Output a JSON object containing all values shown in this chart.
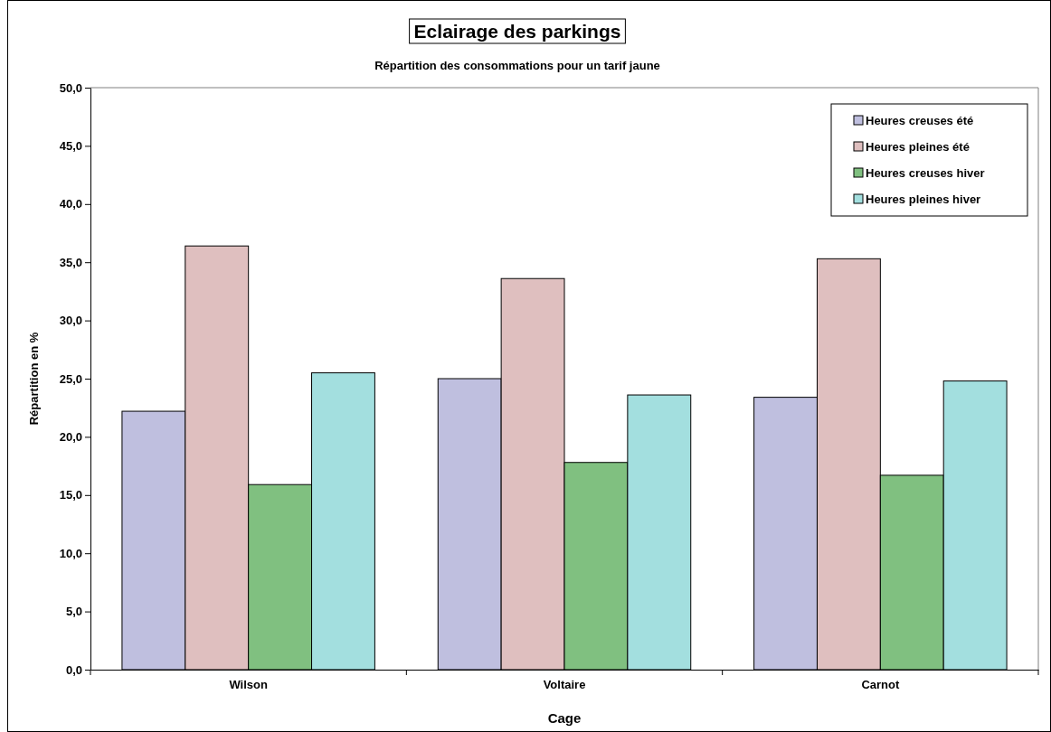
{
  "chart_data": {
    "type": "bar",
    "title": "Eclairage des parkings",
    "subtitle": "Répartition des consommations pour un tarif jaune",
    "xlabel": "Cage",
    "ylabel": "Répartition en %",
    "categories": [
      "Wilson",
      "Voltaire",
      "Carnot"
    ],
    "series": [
      {
        "name": "Heures creuses été",
        "color": "#bfbfdf",
        "values": [
          22.2,
          25.0,
          23.4
        ]
      },
      {
        "name": "Heures pleines été",
        "color": "#dfbfbf",
        "values": [
          36.4,
          33.6,
          35.3
        ]
      },
      {
        "name": "Heures creuses hiver",
        "color": "#80c080",
        "values": [
          15.9,
          17.8,
          16.7
        ]
      },
      {
        "name": "Heures pleines hiver",
        "color": "#a3dfdf",
        "values": [
          25.5,
          23.6,
          24.8
        ]
      }
    ],
    "ylim": [
      0,
      50
    ],
    "yticks": [
      {
        "value": 0,
        "label": "0,0"
      },
      {
        "value": 5,
        "label": "5,0"
      },
      {
        "value": 10,
        "label": "10,0"
      },
      {
        "value": 15,
        "label": "15,0"
      },
      {
        "value": 20,
        "label": "20,0"
      },
      {
        "value": 25,
        "label": "25,0"
      },
      {
        "value": 30,
        "label": "30,0"
      },
      {
        "value": 35,
        "label": "35,0"
      },
      {
        "value": 40,
        "label": "40,0"
      },
      {
        "value": 45,
        "label": "45,0"
      },
      {
        "value": 50,
        "label": "50,0"
      }
    ],
    "grid": false,
    "legend": "top right"
  }
}
